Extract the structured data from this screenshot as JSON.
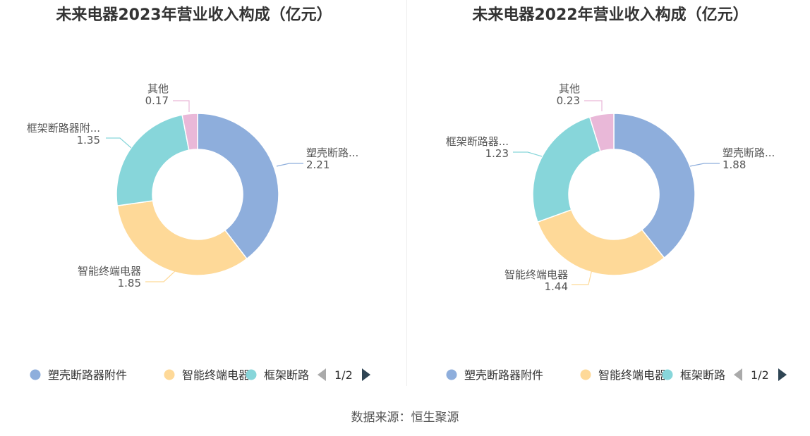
{
  "chart_data": [
    {
      "type": "pie",
      "title": "未来电器2023年营业收入构成（亿元）",
      "slices": [
        {
          "name": "塑壳断路器附件",
          "label": "塑壳断路...",
          "value": 2.21,
          "value_label": "2.21",
          "color": "#8eaedc"
        },
        {
          "name": "智能终端电器",
          "label": "智能终端电器",
          "value": 1.85,
          "value_label": "1.85",
          "color": "#fed998"
        },
        {
          "name": "框架断路器附件",
          "label": "框架断路器附...",
          "value": 1.35,
          "value_label": "1.35",
          "color": "#87d6da"
        },
        {
          "name": "其他",
          "label": "其他",
          "value": 0.17,
          "value_label": "0.17",
          "color": "#e9b8d8"
        }
      ],
      "legend": {
        "position": "bottom",
        "items": [
          "塑壳断路器附件",
          "智能终端电器",
          "框架断路"
        ],
        "page": "1/2"
      }
    },
    {
      "type": "pie",
      "title": "未来电器2022年营业收入构成（亿元）",
      "slices": [
        {
          "name": "塑壳断路器附件",
          "label": "塑壳断路...",
          "value": 1.88,
          "value_label": "1.88",
          "color": "#8eaedc"
        },
        {
          "name": "智能终端电器",
          "label": "智能终端电器",
          "value": 1.44,
          "value_label": "1.44",
          "color": "#fed998"
        },
        {
          "name": "框架断路器附件",
          "label": "框架断路器...",
          "value": 1.23,
          "value_label": "1.23",
          "color": "#87d6da"
        },
        {
          "name": "其他",
          "label": "其他",
          "value": 0.23,
          "value_label": "0.23",
          "color": "#e9b8d8"
        }
      ],
      "legend": {
        "position": "bottom",
        "items": [
          "塑壳断路器附件",
          "智能终端电器",
          "框架断路"
        ],
        "page": "1/2"
      }
    }
  ],
  "source": "数据来源：恒生聚源"
}
